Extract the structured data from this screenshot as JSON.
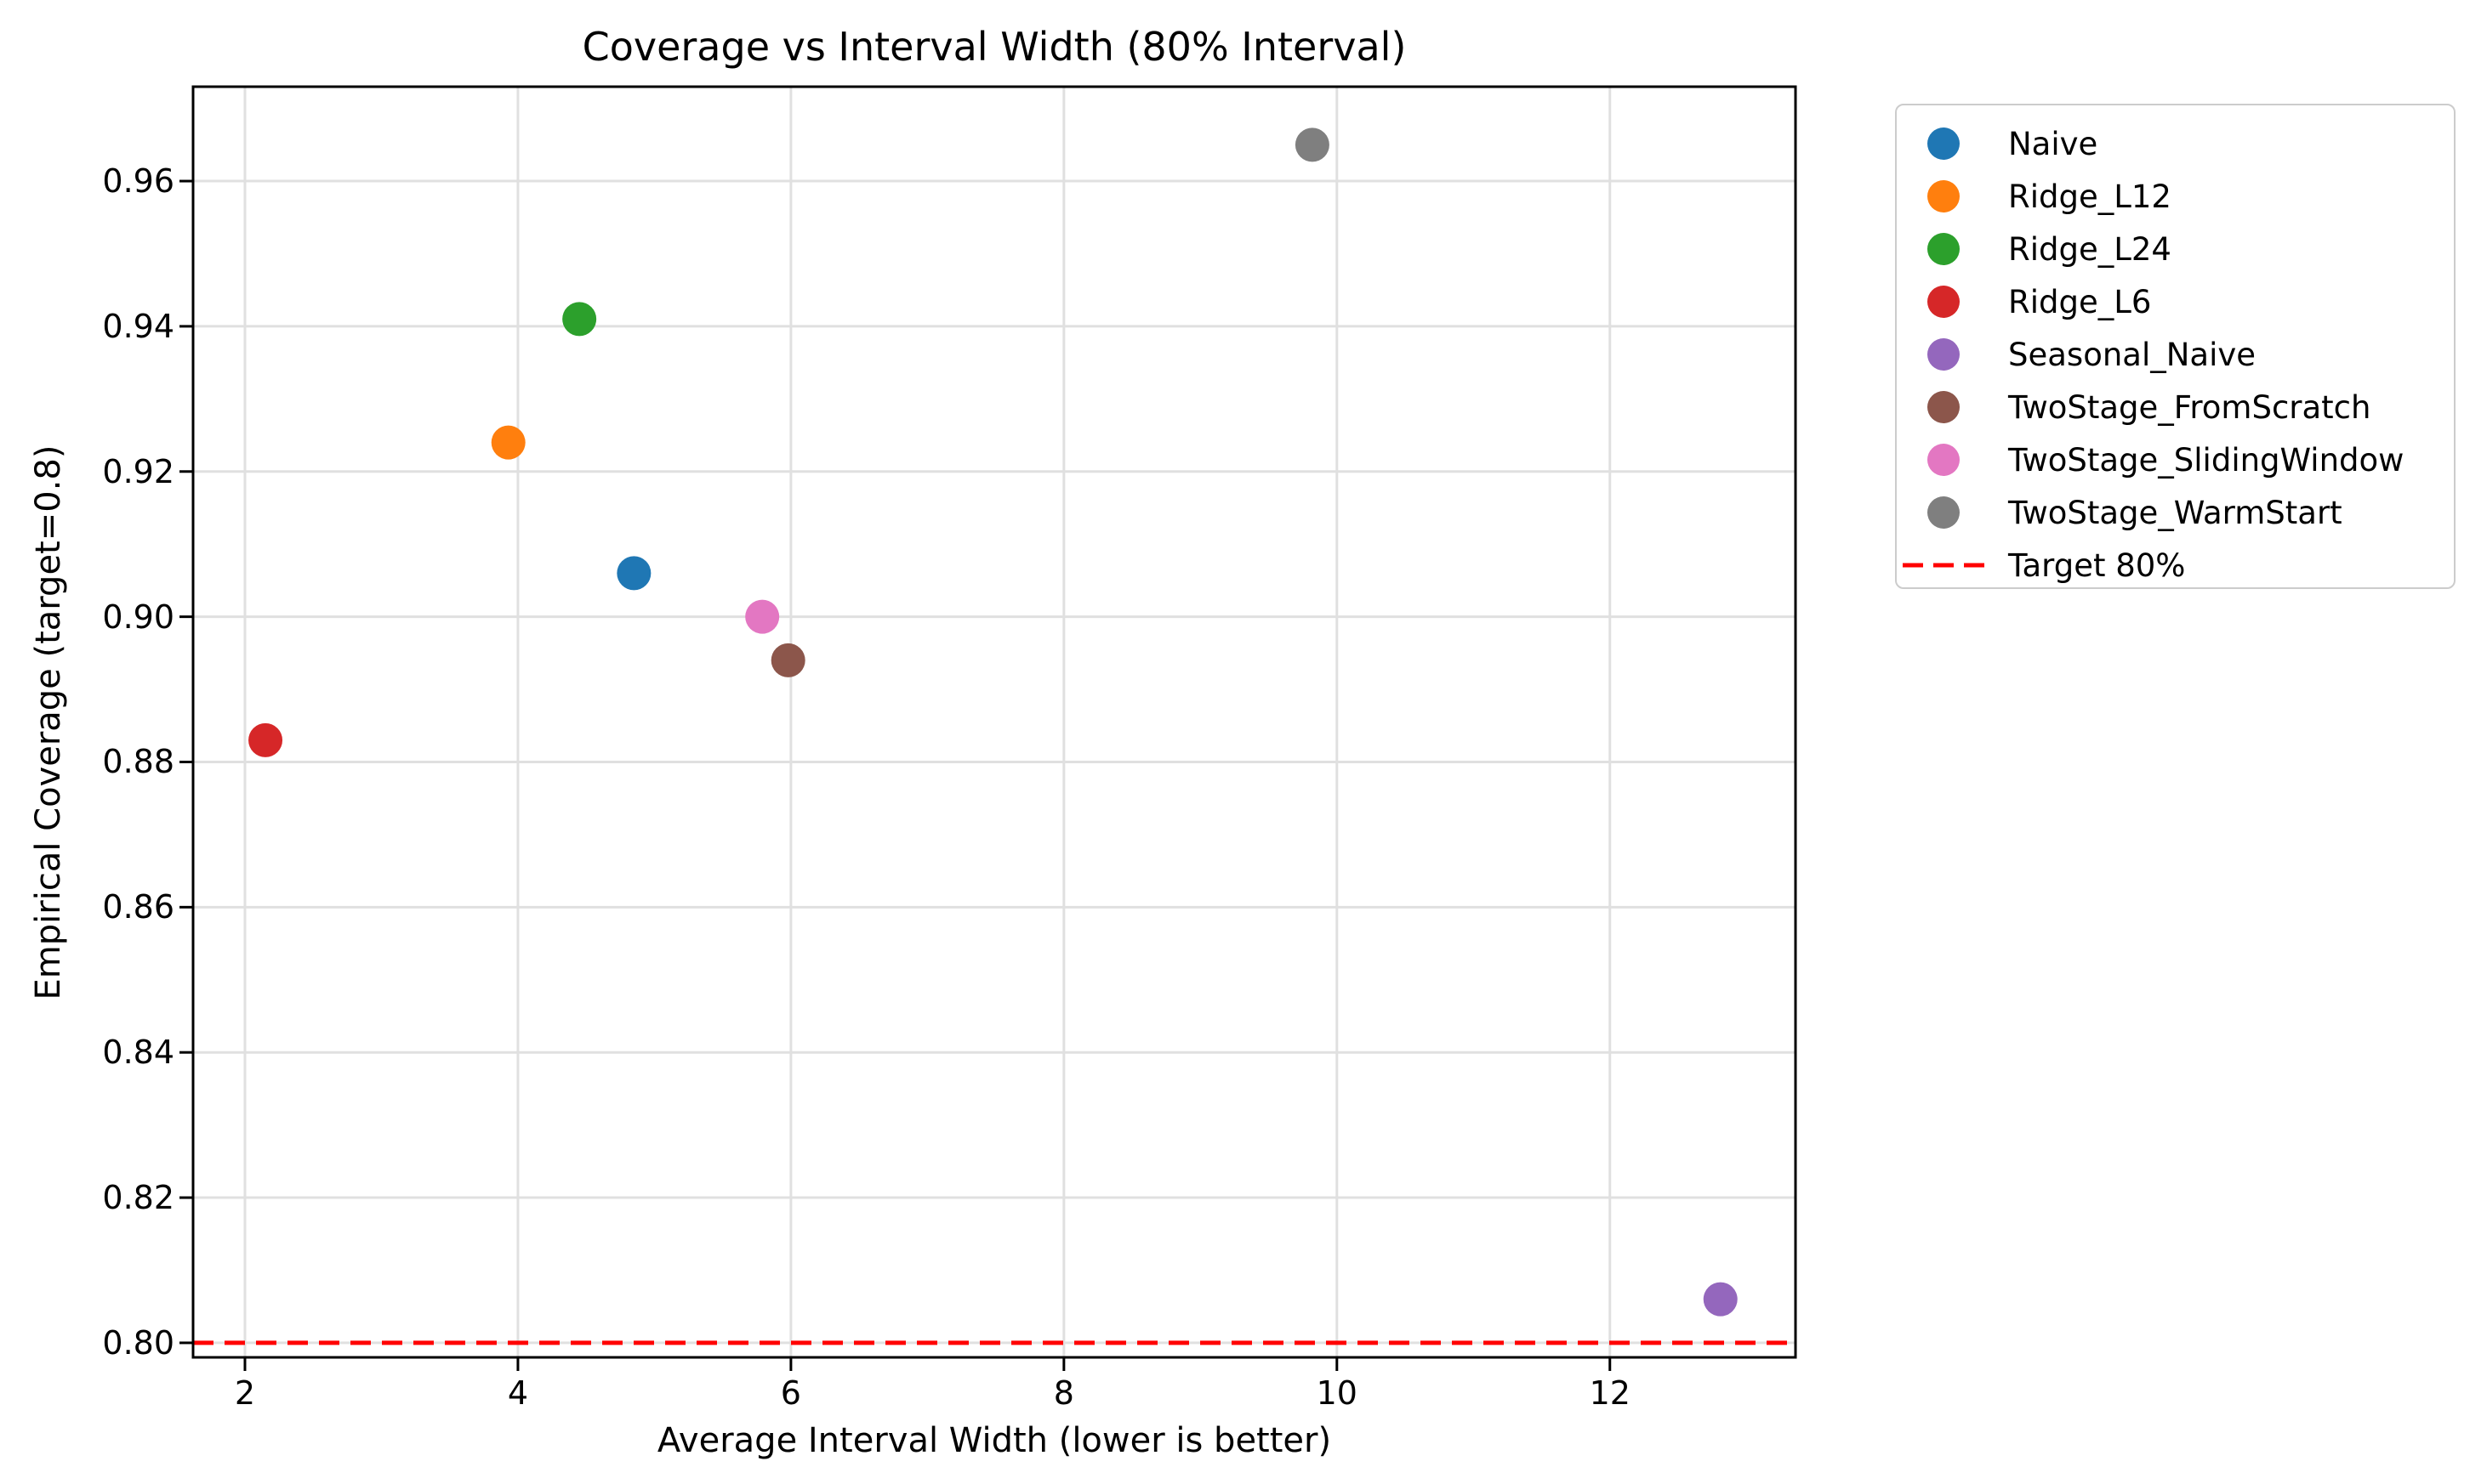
{
  "chart_data": {
    "type": "scatter",
    "title": "Coverage vs Interval Width (80% Interval)",
    "xlabel": "Average Interval Width (lower is better)",
    "ylabel": "Empirical Coverage (target=0.8)",
    "xlim": [
      1.62,
      13.36
    ],
    "ylim": [
      0.798,
      0.973
    ],
    "xticks": [
      2,
      4,
      6,
      8,
      10,
      12
    ],
    "xtick_labels": [
      "2",
      "4",
      "6",
      "8",
      "10",
      "12"
    ],
    "yticks": [
      0.8,
      0.82,
      0.84,
      0.86,
      0.88,
      0.9,
      0.92,
      0.94,
      0.96
    ],
    "ytick_labels": [
      "0.80",
      "0.82",
      "0.84",
      "0.86",
      "0.88",
      "0.90",
      "0.92",
      "0.94",
      "0.96"
    ],
    "grid": true,
    "grid_color": "#e0e0e0",
    "legend_position": "outside-upper-right",
    "marker_radius_px": 20,
    "series": [
      {
        "name": "Naive",
        "color": "#1f77b4",
        "points": [
          {
            "x": 4.85,
            "y": 0.906
          }
        ]
      },
      {
        "name": "Ridge_L12",
        "color": "#ff7f0e",
        "points": [
          {
            "x": 3.93,
            "y": 0.924
          }
        ]
      },
      {
        "name": "Ridge_L24",
        "color": "#2ca02c",
        "points": [
          {
            "x": 4.45,
            "y": 0.941
          }
        ]
      },
      {
        "name": "Ridge_L6",
        "color": "#d62728",
        "points": [
          {
            "x": 2.15,
            "y": 0.883
          }
        ]
      },
      {
        "name": "Seasonal_Naive",
        "color": "#9467bd",
        "points": [
          {
            "x": 12.81,
            "y": 0.806
          }
        ]
      },
      {
        "name": "TwoStage_FromScratch",
        "color": "#8c564b",
        "points": [
          {
            "x": 5.98,
            "y": 0.894
          }
        ]
      },
      {
        "name": "TwoStage_SlidingWindow",
        "color": "#e377c2",
        "points": [
          {
            "x": 5.79,
            "y": 0.9
          }
        ]
      },
      {
        "name": "TwoStage_WarmStart",
        "color": "#7f7f7f",
        "points": [
          {
            "x": 9.82,
            "y": 0.965
          }
        ]
      }
    ],
    "reference_line": {
      "label": "Target 80%",
      "y": 0.8,
      "color": "#ff0000",
      "style": "dashed"
    }
  }
}
